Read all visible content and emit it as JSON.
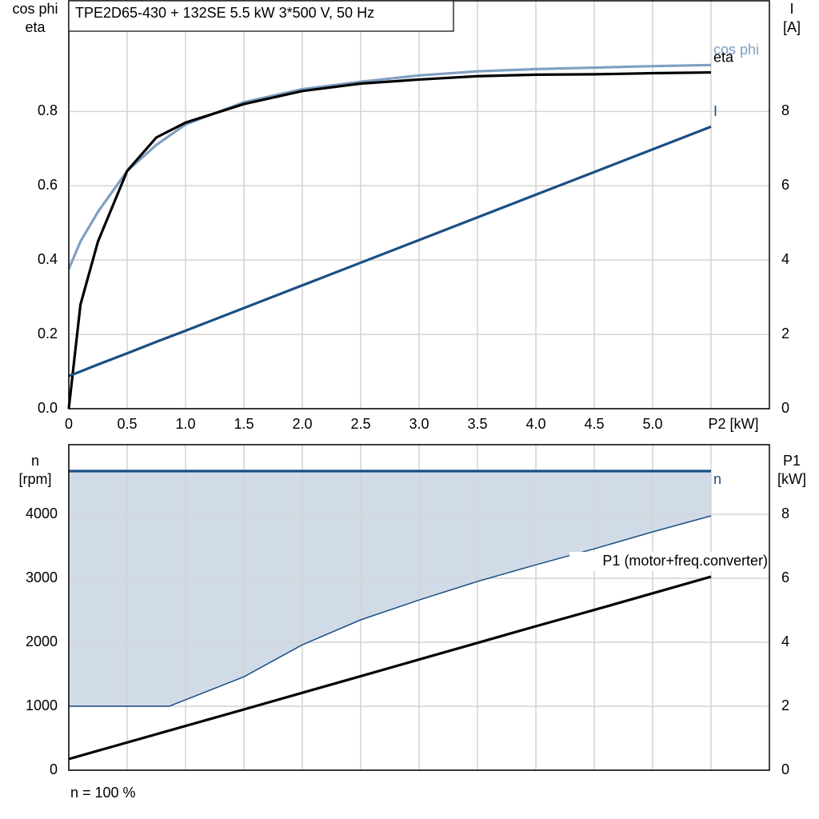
{
  "chart_data": [
    {
      "type": "line",
      "title": "TPE2D65-430 + 132SE   5.5 kW   3*500 V, 50 Hz",
      "ylabel": [
        "cos phi",
        "eta"
      ],
      "y2label": [
        "I",
        "[A]"
      ],
      "x": [
        0,
        0.1,
        0.25,
        0.5,
        0.75,
        1,
        1.5,
        2,
        2.5,
        3,
        3.5,
        4,
        4.5,
        5,
        5.5
      ],
      "xlim": [
        0,
        6
      ],
      "xticks": [
        0,
        0.5,
        {
          "value": 1,
          "label": "1.0"
        },
        1.5,
        {
          "value": 2,
          "label": "2.0"
        },
        2.5,
        {
          "value": 3,
          "label": "3.0"
        },
        3.5,
        {
          "value": 4,
          "label": "4.0"
        },
        4.5,
        {
          "value": 5,
          "label": "5.0"
        },
        {
          "value": 5.5,
          "label": "P2 [kW]"
        }
      ],
      "ylim": [
        0,
        1.1
      ],
      "yticks": [
        {
          "value": 0,
          "label": "0.0"
        },
        0.2,
        0.4,
        0.6,
        0.8
      ],
      "y2lim": [
        0,
        11
      ],
      "y2ticks": [
        0,
        2,
        4,
        6,
        8
      ],
      "grid": true,
      "series": [
        {
          "name": "cos phi",
          "color": "#7f9fc2",
          "values": [
            0.376,
            0.45,
            0.53,
            0.64,
            0.71,
            0.765,
            0.825,
            0.86,
            0.88,
            0.897,
            0.908,
            0.914,
            0.918,
            0.922,
            0.925
          ]
        },
        {
          "name": "eta",
          "color": "#000000",
          "values": [
            0,
            0.28,
            0.45,
            0.64,
            0.73,
            0.77,
            0.82,
            0.855,
            0.875,
            0.886,
            0.895,
            0.899,
            0.9,
            0.903,
            0.905
          ]
        },
        {
          "name": "I",
          "color": "#1a4f84",
          "axis": "y2",
          "values": [
            0.88,
            1.0,
            1.19,
            1.49,
            1.8,
            2.1,
            2.71,
            3.32,
            3.93,
            4.54,
            5.15,
            5.76,
            6.37,
            6.98,
            7.59
          ]
        }
      ]
    },
    {
      "type": "line",
      "ylabel": [
        "n",
        "[rpm]"
      ],
      "y2label": [
        "P1",
        "[kW]"
      ],
      "footnote": "n = 100 %",
      "x": [
        0,
        0.86,
        1.5,
        2,
        2.5,
        3,
        3.5,
        4,
        4.5,
        5,
        5.5
      ],
      "xlim": [
        0,
        6
      ],
      "xticks": [
        0,
        0.5,
        1,
        1.5,
        2,
        2.5,
        3,
        3.5,
        4,
        4.5,
        5,
        5.5
      ],
      "xtick_labels": false,
      "ylim": [
        0,
        5100
      ],
      "yticks": [
        0,
        1000,
        2000,
        3000,
        4000
      ],
      "y2lim": [
        0,
        10.2
      ],
      "y2ticks": [
        0,
        2,
        4,
        6,
        8
      ],
      "grid": true,
      "fill_color": "#d0dbe7",
      "fill_lower": [
        1000,
        1000,
        1460,
        1960,
        2350,
        2660,
        2950,
        3210,
        3460,
        3725,
        3975
      ],
      "series": [
        {
          "name": "n",
          "color": "#1a4f84",
          "values": [
            4675,
            4675,
            4675,
            4675,
            4675,
            4675,
            4675,
            4675,
            4675,
            4675,
            4675
          ]
        },
        {
          "name": "P1 (motor+freq.converter)",
          "color": "#000000",
          "axis": "y2",
          "values": [
            0.35,
            1.24,
            1.9,
            2.42,
            2.94,
            3.46,
            3.98,
            4.5,
            5.01,
            5.53,
            6.05
          ]
        }
      ]
    }
  ]
}
